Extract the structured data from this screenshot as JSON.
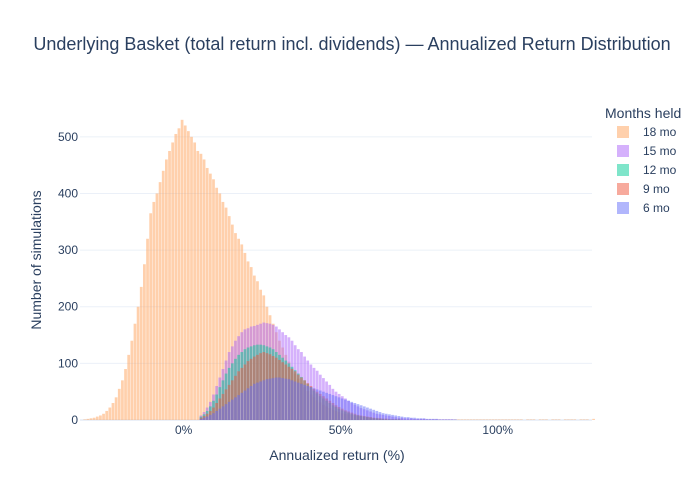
{
  "chart_data": {
    "type": "bar",
    "title": "Underlying Basket (total return incl. dividends) — Annualized Return Distribution",
    "xlabel": "Annualized return (%)",
    "ylabel": "Number of simulations",
    "xlim": [
      -0.33,
      1.3
    ],
    "ylim": [
      0,
      565
    ],
    "bin_width": 0.01,
    "barmode": "overlay",
    "bar_opacity": 0.5,
    "grid": true,
    "x_ticks": [
      {
        "value": 0,
        "label": "0%"
      },
      {
        "value": 0.5,
        "label": "50%"
      },
      {
        "value": 1.0,
        "label": "100%"
      }
    ],
    "y_ticks": [
      0,
      100,
      200,
      300,
      400,
      500
    ],
    "legend": {
      "title": "Months held",
      "placement": "right",
      "items": [
        {
          "label": "18 mo",
          "color": "#FFA15A"
        },
        {
          "label": "15 mo",
          "color": "#AB63FA"
        },
        {
          "label": "12 mo",
          "color": "#00CC96"
        },
        {
          "label": "9 mo",
          "color": "#EF553B"
        },
        {
          "label": "6 mo",
          "color": "#636EFA"
        }
      ]
    },
    "series": [
      {
        "name": "18 mo",
        "color": "#FFA15A",
        "x_start": -0.32,
        "values": [
          1,
          2,
          3,
          4,
          6,
          8,
          11,
          16,
          22,
          30,
          40,
          55,
          70,
          90,
          115,
          140,
          170,
          200,
          235,
          275,
          320,
          365,
          385,
          400,
          420,
          440,
          460,
          475,
          490,
          505,
          515,
          530,
          520,
          510,
          500,
          490,
          475,
          470,
          460,
          445,
          435,
          425,
          410,
          400,
          385,
          375,
          360,
          345,
          330,
          320,
          310,
          295,
          280,
          270,
          255,
          245,
          230,
          220,
          200,
          185,
          170,
          155,
          140,
          128,
          115,
          103,
          92,
          82,
          73,
          65,
          58,
          51,
          45,
          40,
          35,
          31,
          27,
          24,
          21,
          18,
          16,
          14,
          12,
          11,
          10,
          9,
          8,
          7,
          6,
          6,
          5,
          5,
          4,
          4,
          3,
          3,
          3,
          2,
          2,
          2,
          2,
          2,
          1,
          1,
          1,
          1,
          1,
          1,
          1,
          1,
          1,
          1,
          1,
          1,
          1,
          1,
          1,
          1,
          1,
          1,
          1,
          1,
          1,
          1,
          1,
          1,
          1,
          1,
          1,
          1,
          1,
          1,
          1,
          1,
          1,
          1,
          1,
          1,
          1,
          1,
          0,
          1,
          1,
          1,
          0,
          1,
          1,
          1,
          0,
          1,
          1,
          1,
          0,
          1,
          1,
          1,
          1,
          0,
          1,
          1,
          1,
          0,
          2,
          1,
          1
        ]
      },
      {
        "name": "15 mo",
        "color": "#AB63FA",
        "x_start": 0.05,
        "values": [
          8,
          14,
          22,
          32,
          45,
          60,
          75,
          90,
          105,
          120,
          130,
          140,
          148,
          155,
          160,
          162,
          165,
          166,
          168,
          170,
          172,
          171,
          170,
          168,
          165,
          160,
          155,
          150,
          146,
          140,
          132,
          125,
          120,
          112,
          105,
          98,
          92,
          87,
          80,
          74,
          68,
          62,
          55,
          50,
          46,
          42,
          38,
          34,
          30,
          27,
          24,
          21,
          19,
          17,
          15,
          13,
          11,
          10,
          9,
          8,
          7,
          6,
          5,
          4,
          4,
          3,
          3,
          3,
          2,
          2,
          2,
          2,
          1,
          1,
          1,
          1,
          1,
          1,
          1,
          1,
          1
        ]
      },
      {
        "name": "12 mo",
        "color": "#00CC96",
        "x_start": 0.05,
        "values": [
          6,
          10,
          16,
          24,
          34,
          45,
          58,
          70,
          82,
          92,
          100,
          108,
          115,
          120,
          125,
          128,
          130,
          132,
          133,
          133,
          132,
          130,
          128,
          125,
          120,
          115,
          110,
          105,
          100,
          94,
          88,
          82,
          76,
          70,
          64,
          58,
          52,
          47,
          42,
          38,
          34,
          30,
          26,
          23,
          20,
          17,
          15,
          13,
          11,
          9,
          8,
          7,
          6,
          5,
          4,
          3,
          3,
          2,
          2,
          1,
          1,
          1,
          1,
          1
        ]
      },
      {
        "name": "9 mo",
        "color": "#EF553B",
        "x_start": 0.05,
        "values": [
          4,
          7,
          11,
          16,
          22,
          30,
          38,
          46,
          54,
          62,
          70,
          78,
          86,
          92,
          98,
          104,
          108,
          112,
          115,
          118,
          120,
          118,
          116,
          113,
          110,
          106,
          102,
          98,
          94,
          90,
          86,
          80,
          75,
          70,
          65,
          60,
          55,
          50,
          46,
          42,
          38,
          34,
          30,
          26,
          23,
          20,
          17,
          15,
          13,
          11,
          9,
          8,
          7,
          6,
          5,
          4,
          3,
          3,
          2,
          2,
          1,
          1,
          1,
          1
        ]
      },
      {
        "name": "6 mo",
        "color": "#636EFA",
        "x_start": 0.05,
        "values": [
          2,
          4,
          6,
          9,
          12,
          16,
          20,
          24,
          28,
          32,
          36,
          40,
          44,
          48,
          52,
          56,
          60,
          64,
          66,
          68,
          70,
          72,
          73,
          74,
          75,
          75,
          74,
          73,
          72,
          70,
          68,
          66,
          64,
          62,
          60,
          58,
          56,
          54,
          52,
          50,
          48,
          46,
          44,
          42,
          40,
          38,
          36,
          34,
          32,
          30,
          28,
          26,
          24,
          22,
          20,
          18,
          16,
          14,
          12,
          11,
          10,
          9,
          8,
          7,
          6,
          5,
          5,
          4,
          4,
          3,
          3,
          3,
          2,
          2,
          2,
          2,
          1,
          1,
          1,
          1,
          1,
          1
        ]
      }
    ]
  }
}
